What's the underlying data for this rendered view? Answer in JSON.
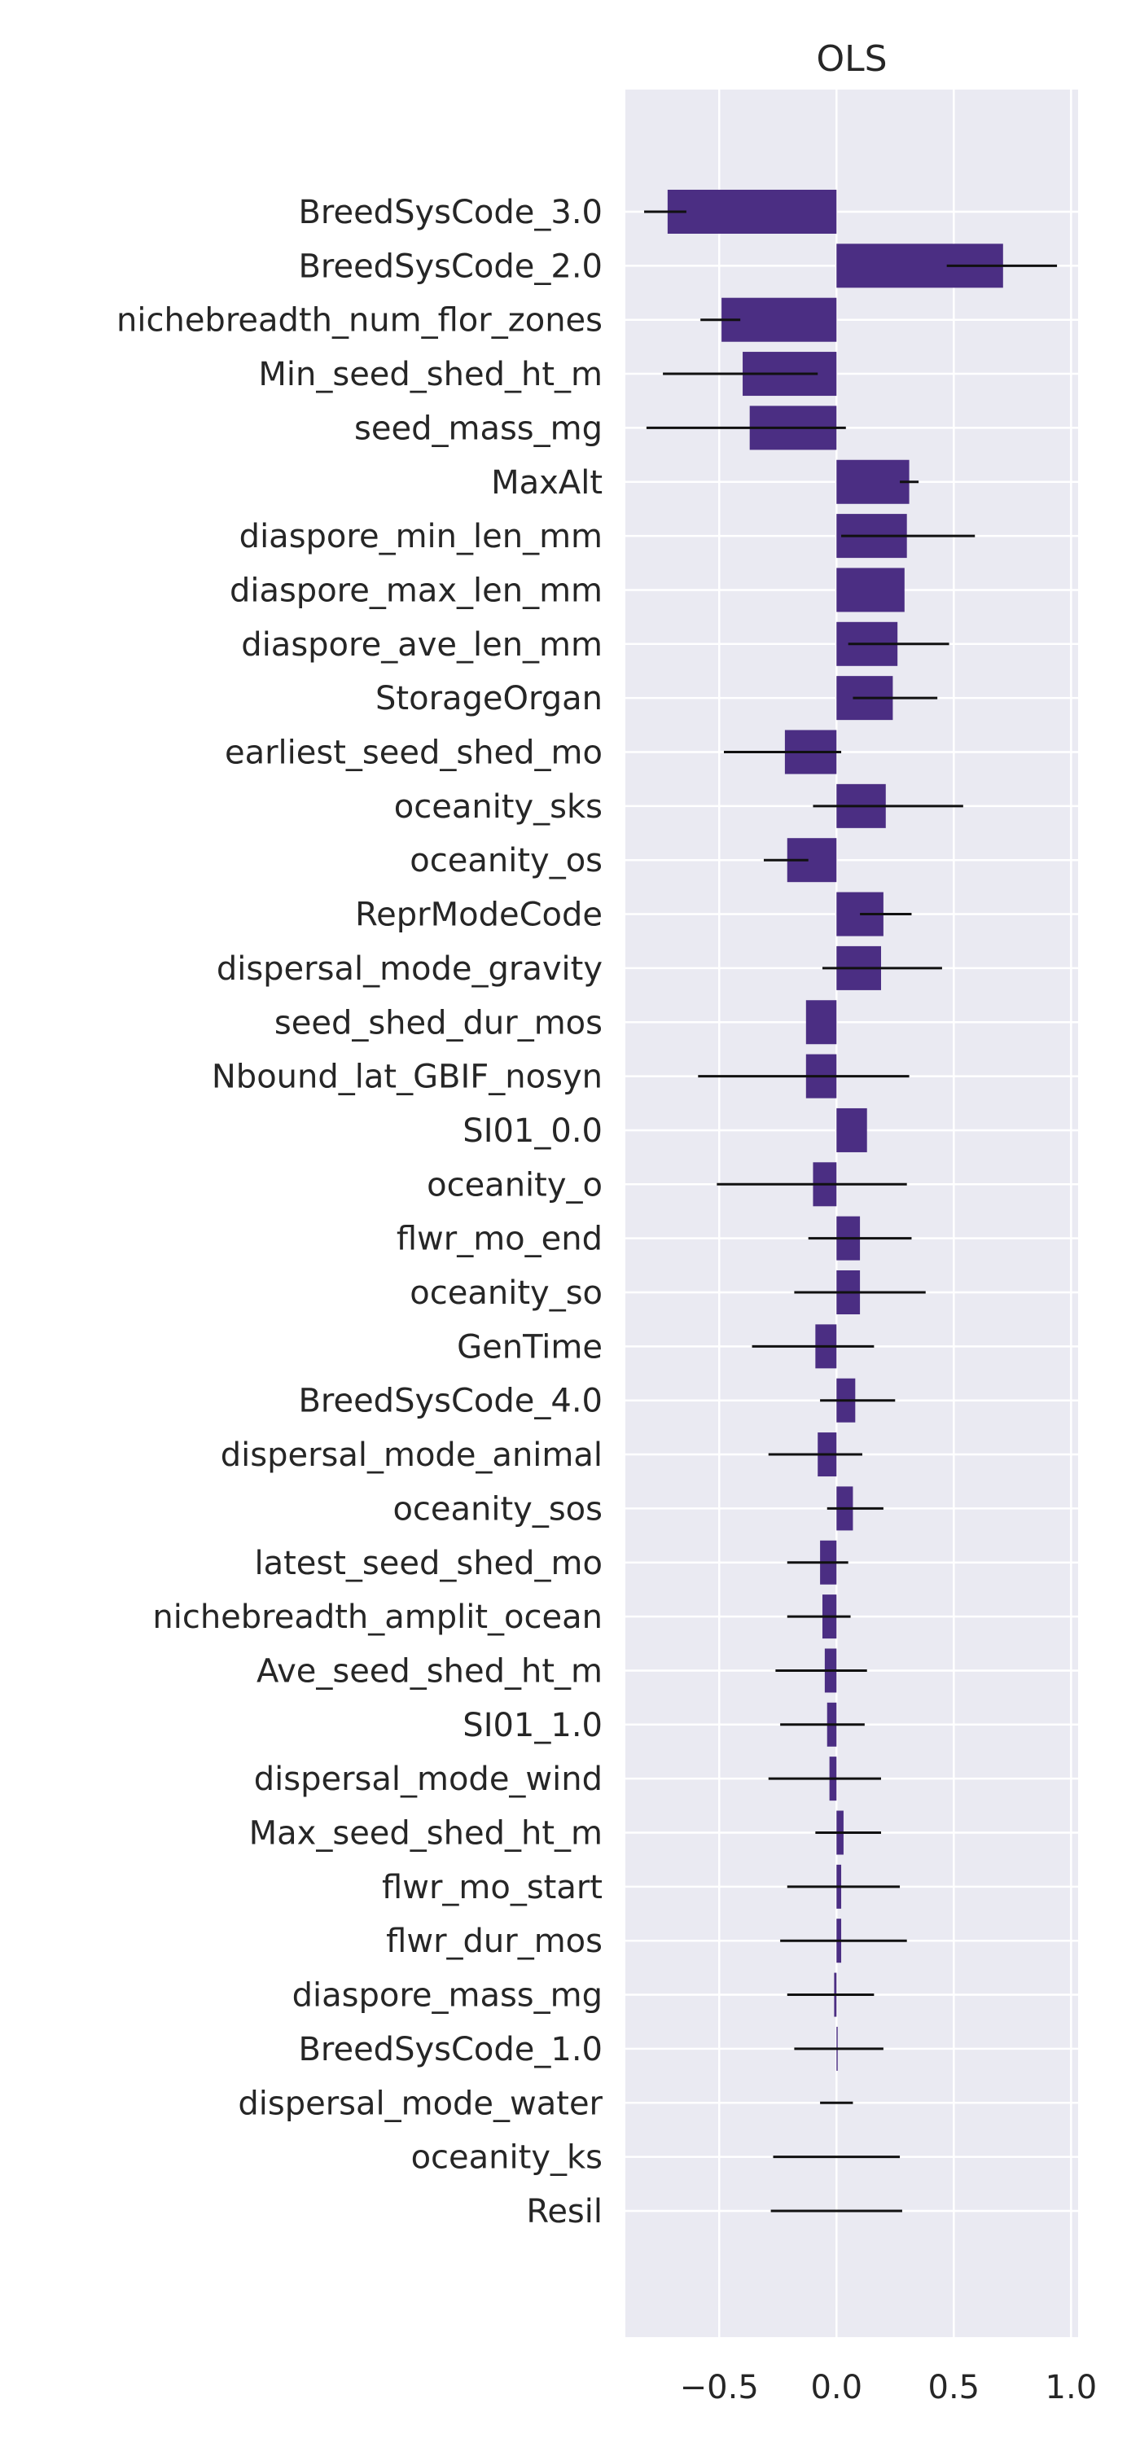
{
  "chart_data": {
    "type": "bar",
    "orientation": "horizontal",
    "title": "OLS",
    "xlabel": "",
    "ylabel": "",
    "xlim": [
      -0.9,
      1.03
    ],
    "xticks": [
      -0.5,
      0.0,
      0.5,
      1.0
    ],
    "xtick_labels": [
      "−0.5",
      "0.0",
      "0.5",
      "1.0"
    ],
    "grid": true,
    "style": "seaborn-darkgrid",
    "colors": {
      "bar": "#4b2e83",
      "background": "#eaeaf2",
      "grid": "#ffffff",
      "errorbar": "#111111",
      "text": "#262626"
    },
    "categories": [
      "BreedSysCode_3.0",
      "BreedSysCode_2.0",
      "nichebreadth_num_flor_zones",
      "Min_seed_shed_ht_m",
      "seed_mass_mg",
      "MaxAlt",
      "diaspore_min_len_mm",
      "diaspore_max_len_mm",
      "diaspore_ave_len_mm",
      "StorageOrgan",
      "earliest_seed_shed_mo",
      "oceanity_sks",
      "oceanity_os",
      "ReprModeCode",
      "dispersal_mode_gravity",
      "seed_shed_dur_mos",
      "Nbound_lat_GBIF_nosyn",
      "SI01_0.0",
      "oceanity_o",
      "flwr_mo_end",
      "oceanity_so",
      "GenTime",
      "BreedSysCode_4.0",
      "dispersal_mode_animal",
      "oceanity_sos",
      "latest_seed_shed_mo",
      "nichebreadth_amplit_ocean",
      "Ave_seed_shed_ht_m",
      "SI01_1.0",
      "dispersal_mode_wind",
      "Max_seed_shed_ht_m",
      "flwr_mo_start",
      "flwr_dur_mos",
      "diaspore_mass_mg",
      "BreedSysCode_1.0",
      "dispersal_mode_water",
      "oceanity_ks",
      "Resil"
    ],
    "values": [
      -0.72,
      0.71,
      -0.49,
      -0.4,
      -0.37,
      0.31,
      0.3,
      0.29,
      0.26,
      0.24,
      -0.22,
      0.21,
      -0.21,
      0.2,
      0.19,
      -0.13,
      -0.13,
      0.13,
      -0.1,
      0.1,
      0.1,
      -0.09,
      0.08,
      -0.08,
      0.07,
      -0.07,
      -0.06,
      -0.05,
      -0.04,
      -0.03,
      0.03,
      0.02,
      0.02,
      -0.01,
      0.005,
      0.0,
      0.0,
      0.0
    ],
    "errors": [
      [
        -0.82,
        -0.64
      ],
      [
        0.47,
        0.94
      ],
      [
        -0.58,
        -0.41
      ],
      [
        -0.74,
        -0.08
      ],
      [
        -0.81,
        0.04
      ],
      [
        0.27,
        0.35
      ],
      [
        0.02,
        0.59
      ],
      null,
      [
        0.05,
        0.48
      ],
      [
        0.07,
        0.43
      ],
      [
        -0.48,
        0.02
      ],
      [
        -0.1,
        0.54
      ],
      [
        -0.31,
        -0.12
      ],
      [
        0.1,
        0.32
      ],
      [
        -0.06,
        0.45
      ],
      null,
      [
        -0.59,
        0.31
      ],
      null,
      [
        -0.51,
        0.3
      ],
      [
        -0.12,
        0.32
      ],
      [
        -0.18,
        0.38
      ],
      [
        -0.36,
        0.16
      ],
      [
        -0.07,
        0.25
      ],
      [
        -0.29,
        0.11
      ],
      [
        -0.04,
        0.2
      ],
      [
        -0.21,
        0.05
      ],
      [
        -0.21,
        0.06
      ],
      [
        -0.26,
        0.13
      ],
      [
        -0.24,
        0.12
      ],
      [
        -0.29,
        0.19
      ],
      [
        -0.09,
        0.19
      ],
      [
        -0.21,
        0.27
      ],
      [
        -0.24,
        0.3
      ],
      [
        -0.21,
        0.16
      ],
      [
        -0.18,
        0.2
      ],
      [
        -0.07,
        0.07
      ],
      [
        -0.27,
        0.27
      ],
      [
        -0.28,
        0.28
      ]
    ]
  }
}
